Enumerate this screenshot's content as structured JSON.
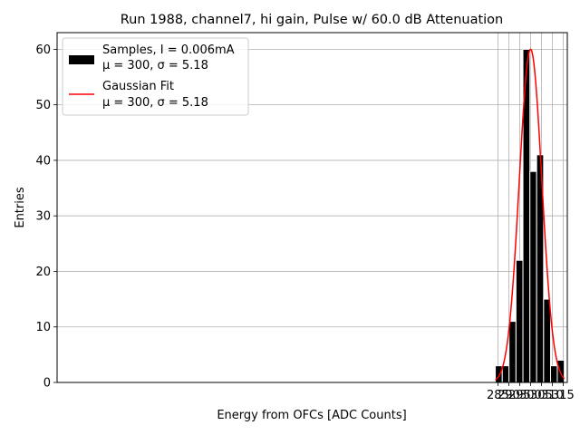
{
  "chart_data": {
    "type": "bar",
    "title": "Run 1988, channel7, hi gain, Pulse w/ 60.0 dB Attenuation",
    "xlabel": "Energy from OFCs [ADC Counts]",
    "ylabel": "Entries",
    "xlim": [
      82.3,
      316.9
    ],
    "ylim": [
      0,
      63
    ],
    "xticks": [
      285,
      290,
      295,
      300,
      305,
      310,
      315
    ],
    "yticks": [
      0,
      10,
      20,
      30,
      40,
      50,
      60
    ],
    "grid": true,
    "legend_position": "top-left",
    "bins": [
      {
        "left": 283.8,
        "right": 287.0,
        "count": 3
      },
      {
        "left": 287.0,
        "right": 290.1,
        "count": 3
      },
      {
        "left": 290.1,
        "right": 293.3,
        "count": 11
      },
      {
        "left": 293.3,
        "right": 296.5,
        "count": 22
      },
      {
        "left": 296.5,
        "right": 299.7,
        "count": 60
      },
      {
        "left": 299.7,
        "right": 302.8,
        "count": 38
      },
      {
        "left": 302.8,
        "right": 306.0,
        "count": 41
      },
      {
        "left": 306.0,
        "right": 309.2,
        "count": 15
      },
      {
        "left": 309.2,
        "right": 312.3,
        "count": 3
      },
      {
        "left": 312.3,
        "right": 315.5,
        "count": 4
      }
    ],
    "fit": {
      "name": "Gaussian Fit",
      "mu": 300,
      "sigma": 5.18,
      "amplitude": 60,
      "x_range": [
        283.8,
        315.5
      ],
      "color": "#ff0000"
    },
    "bar_color": "#000000",
    "bar_edge_color": "#ffffff",
    "series": [
      {
        "name": "Samples, I = 0.006mA",
        "stats": "μ = 300, σ = 5.18"
      },
      {
        "name": "Gaussian Fit",
        "stats": "μ = 300, σ = 5.18"
      }
    ]
  }
}
